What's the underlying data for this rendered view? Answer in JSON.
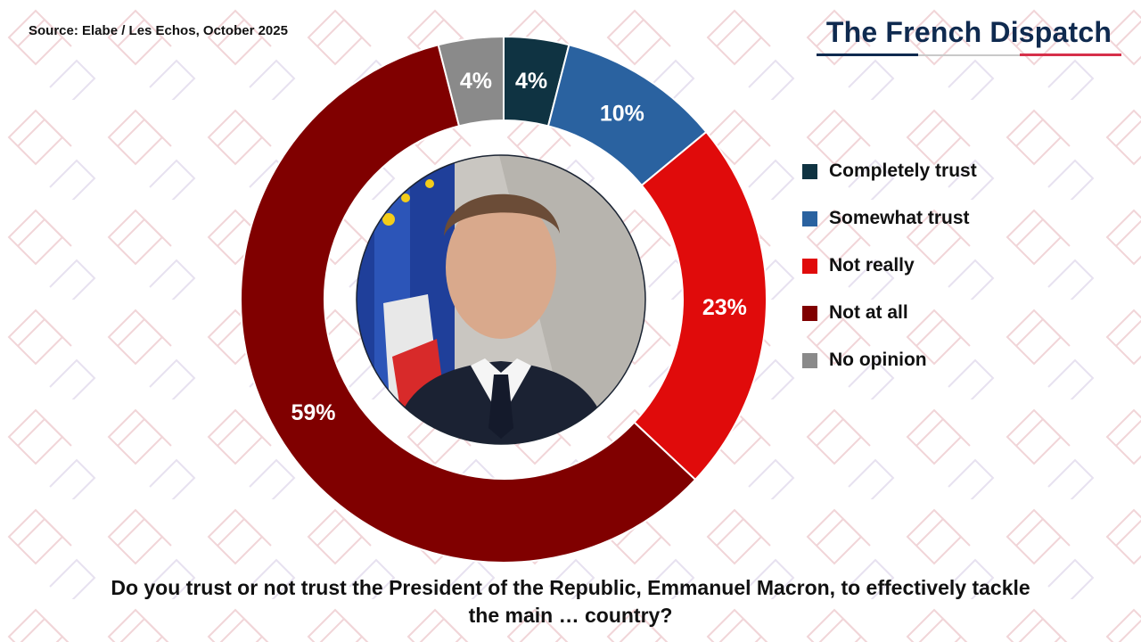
{
  "source": "Source: Elabe / Les Echos, October 2025",
  "brand": {
    "name": "The French Dispatch",
    "colors": {
      "navy": "#0f2a4f",
      "red": "#d6304a"
    }
  },
  "portrait": {
    "icon": "person-portrait-icon",
    "description": "Emmanuel Macron"
  },
  "chart_data": {
    "type": "pie",
    "subtype": "donut",
    "title": "Do you trust or not trust the President of the Republic, Emmanuel Macron, to effectively tackle the main ... the country?",
    "categories": [
      "Completely trust",
      "Somewhat trust",
      "Not really",
      "Not at all",
      "No opinion"
    ],
    "values": [
      4,
      10,
      23,
      59,
      4
    ],
    "labels": [
      "4%",
      "10%",
      "23%",
      "59%",
      "4%"
    ],
    "unit": "%",
    "colors": [
      "#0f3342",
      "#2a62a0",
      "#e00b0b",
      "#800000",
      "#8a8a8a"
    ],
    "legend_position": "right",
    "start": "top",
    "direction": "clockwise"
  },
  "question": {
    "line1": "Do you trust or not trust the President of the Republic, Emmanuel Macron, to effectively tackle",
    "line2": "the main … country?"
  }
}
